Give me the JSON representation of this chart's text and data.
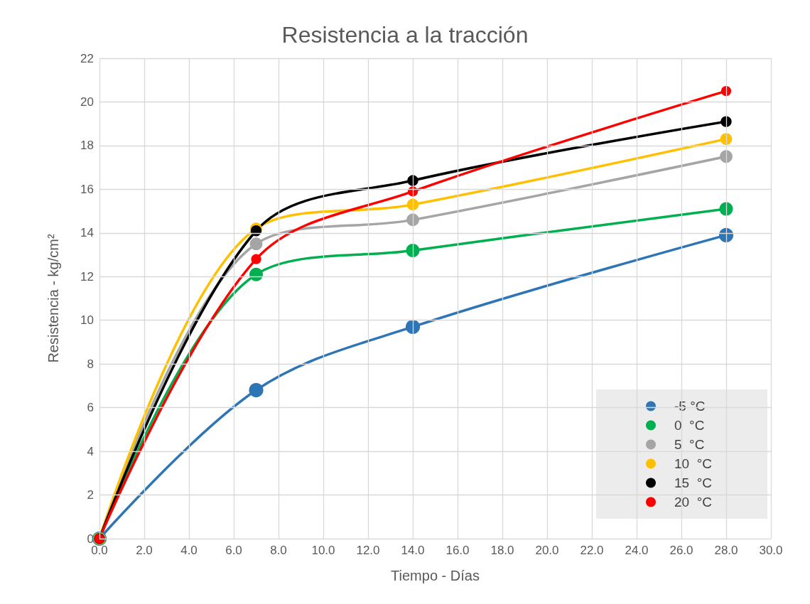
{
  "chart_data": {
    "type": "line",
    "title": "Resistencia a la tracción",
    "xlabel": "Tiempo - Días",
    "ylabel": "Resistencia - kg/cm²",
    "x": [
      0,
      7,
      14,
      28
    ],
    "series": [
      {
        "name": "-5 °C",
        "color": "#2e75b6",
        "values": [
          0,
          6.8,
          9.7,
          13.9
        ]
      },
      {
        "name": "0  °C",
        "color": "#00b050",
        "values": [
          0,
          12.1,
          13.2,
          15.1
        ]
      },
      {
        "name": "5  °C",
        "color": "#a5a5a5",
        "values": [
          0,
          13.5,
          14.6,
          17.5
        ]
      },
      {
        "name": "10  °C",
        "color": "#ffc000",
        "values": [
          0,
          14.2,
          15.3,
          18.3
        ]
      },
      {
        "name": "15  °C",
        "color": "#000000",
        "values": [
          0,
          14.1,
          16.4,
          19.1
        ]
      },
      {
        "name": "20  °C",
        "color": "#ff0000",
        "values": [
          0,
          12.8,
          15.9,
          20.5
        ]
      }
    ],
    "xlim": [
      0,
      30
    ],
    "xticks": [
      {
        "value": 0,
        "label": "0.0"
      },
      {
        "value": 2,
        "label": "2.0"
      },
      {
        "value": 4,
        "label": "4.0"
      },
      {
        "value": 6,
        "label": "6.0"
      },
      {
        "value": 8,
        "label": "8.0"
      },
      {
        "value": 10,
        "label": "10.0"
      },
      {
        "value": 12,
        "label": "12.0"
      },
      {
        "value": 14,
        "label": "14.0"
      },
      {
        "value": 16,
        "label": "16.0"
      },
      {
        "value": 18,
        "label": "18.0"
      },
      {
        "value": 20,
        "label": "20.0"
      },
      {
        "value": 22,
        "label": "22.0"
      },
      {
        "value": 24,
        "label": "24.0"
      },
      {
        "value": 26,
        "label": "26.0"
      },
      {
        "value": 28,
        "label": "28.0"
      },
      {
        "value": 30,
        "label": "30.0"
      }
    ],
    "ylim": [
      0,
      22
    ],
    "yticks": [
      0,
      2,
      4,
      6,
      8,
      10,
      12,
      14,
      16,
      18,
      20,
      22
    ],
    "grid": true,
    "legend": "bottom right",
    "marker": "circle"
  }
}
